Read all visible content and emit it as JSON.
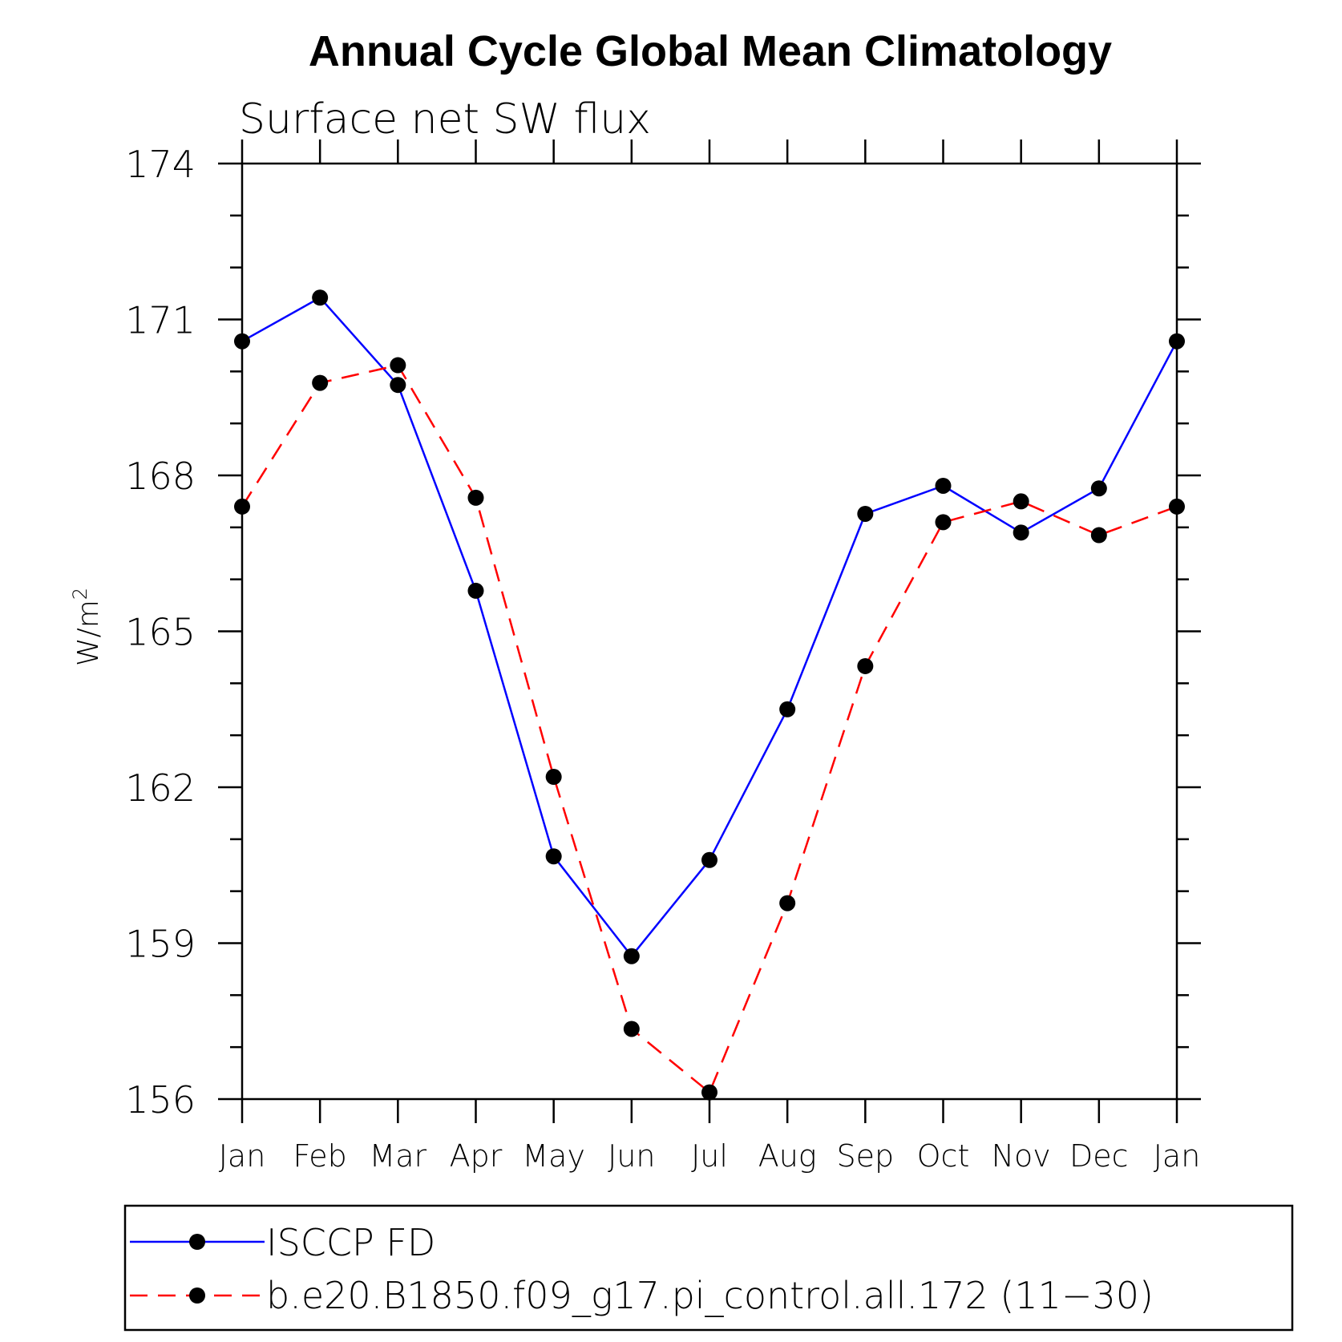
{
  "chart_data": {
    "type": "line",
    "title": "Annual Cycle Global Mean Climatology",
    "subtitle": "Surface net SW flux",
    "ylabel": "W/m",
    "ylabel_sup": "2",
    "xlabel": "",
    "ylim": [
      156,
      174
    ],
    "yticks": [
      "156",
      "159",
      "162",
      "165",
      "168",
      "171",
      "174"
    ],
    "categories": [
      "Jan",
      "Feb",
      "Mar",
      "Apr",
      "May",
      "Jun",
      "Jul",
      "Aug",
      "Sep",
      "Oct",
      "Nov",
      "Dec",
      "Jan"
    ],
    "series": [
      {
        "name": "ISCCP FD",
        "color": "#0000ff",
        "dash": "solid",
        "values": [
          170.58,
          171.42,
          169.74,
          165.78,
          160.67,
          158.75,
          160.6,
          163.5,
          167.26,
          167.8,
          166.9,
          167.75,
          170.58
        ]
      },
      {
        "name": "b.e20.B1850.f09_g17.pi_control.all.172 (11−30)",
        "color": "#ff0000",
        "dash": "dashed",
        "values": [
          167.4,
          169.78,
          170.12,
          167.57,
          162.2,
          157.35,
          156.13,
          159.77,
          164.33,
          167.1,
          167.5,
          166.85,
          167.4
        ]
      }
    ],
    "legend_position": "bottom"
  },
  "marker_color": "#000000"
}
